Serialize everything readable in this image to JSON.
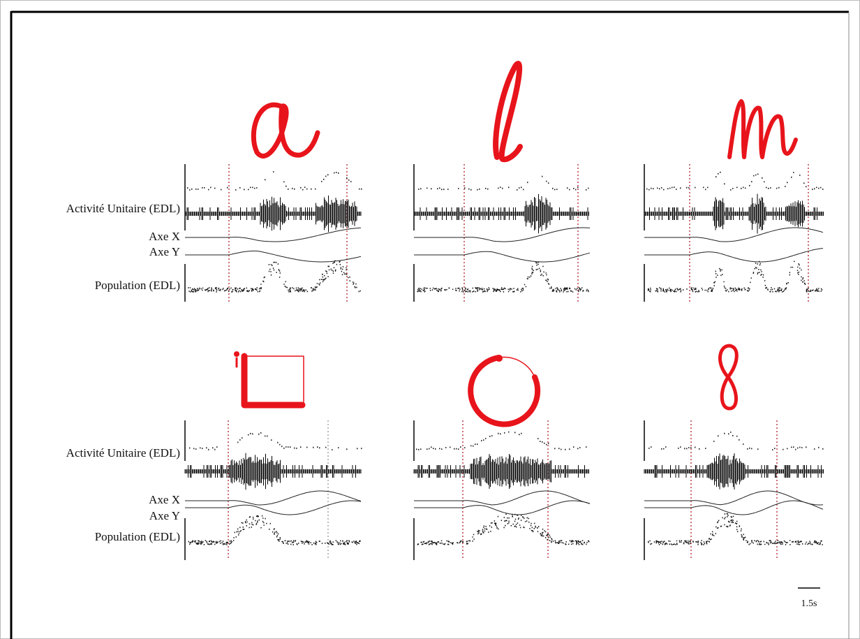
{
  "rows": [
    {
      "labels": {
        "unit": "Activité Unitaire (EDL)",
        "axe_x": "Axe X",
        "axe_y": "Axe Y",
        "population": "Population (EDL)"
      }
    },
    {
      "labels": {
        "unit": "Activité Unitaire (EDL)",
        "axe_x": "Axe X",
        "axe_y": "Axe Y",
        "population": "Population (EDL)"
      }
    }
  ],
  "scale_bar": "1.5s"
}
